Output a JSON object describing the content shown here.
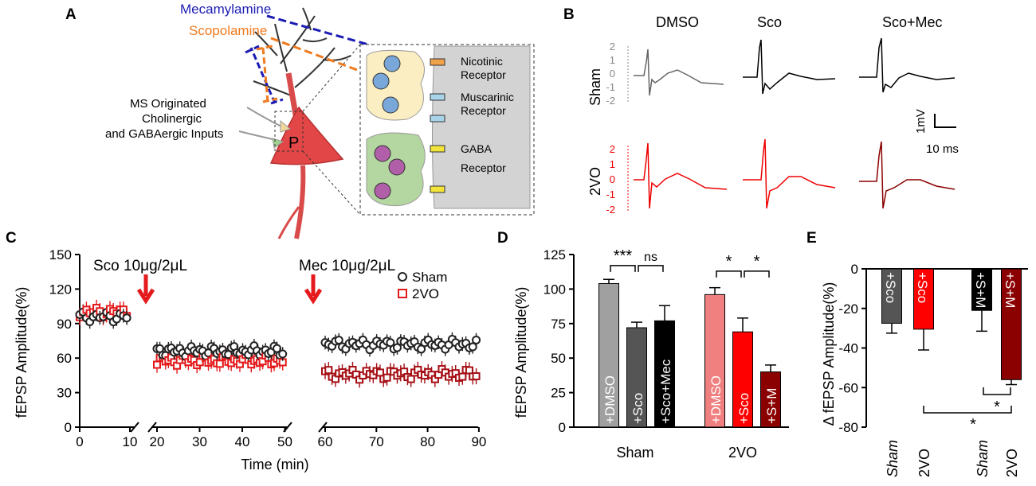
{
  "panels": {
    "a": "A",
    "b": "B",
    "c": "C",
    "d": "D",
    "e": "E"
  },
  "panel_a": {
    "mecamylamine": "Mecamylamine",
    "scopolamine": "Scopolamine",
    "inputs": [
      "MS Originated",
      "Cholinergic",
      "and GABAergic Inputs"
    ],
    "cell": "P",
    "nicotinic": [
      "Nicotinic",
      "Receptor"
    ],
    "muscarinic": [
      "Muscarinic",
      "Receptor"
    ],
    "gaba": [
      "GABA",
      "Receptor"
    ],
    "colors": {
      "mec": "#1c1cb4",
      "sco": "#f07a1e"
    }
  },
  "panel_b": {
    "conditions": [
      "DMSO",
      "Sco",
      "Sco+Mec"
    ],
    "groups": [
      "Sham",
      "2VO"
    ],
    "ticks": [
      "2",
      "1",
      "0",
      "-1",
      "-2"
    ],
    "scale_v": "1mV",
    "scale_t": "10 ms"
  },
  "chart_data": [
    {
      "type": "scatter",
      "title": "",
      "annotations": [
        "Sco 10μg/2μL",
        "Mec 10μg/2μL"
      ],
      "xlabel": "Time (min)",
      "ylabel": "fEPSP Amplitude(%)",
      "ylim": [
        0,
        150
      ],
      "yticks": [
        "0",
        "30",
        "60",
        "90",
        "120",
        "150"
      ],
      "xticks": [
        "0",
        "10",
        "20",
        "30",
        "40",
        "50",
        "60",
        "70",
        "80",
        "90"
      ],
      "series": [
        {
          "name": "Sham",
          "color": "#222222",
          "baseline": 100,
          "mid": 66,
          "late": 72
        },
        {
          "name": "2VO",
          "color": "#e41a1c",
          "late_color": "#a50f15",
          "baseline": 100,
          "mid": 58,
          "late": 46
        }
      ]
    },
    {
      "type": "bar",
      "ylabel": "fEPSP Amplitude(%)",
      "ylim": [
        0,
        125
      ],
      "yticks": [
        "0",
        "25",
        "50",
        "75",
        "100",
        "125"
      ],
      "groups": [
        "Sham",
        "2VO"
      ],
      "bars": [
        {
          "label": "+DMSO",
          "value": 104,
          "err": 3,
          "color": "#a0a0a0"
        },
        {
          "label": "+Sco",
          "value": 72,
          "err": 4,
          "color": "#555555"
        },
        {
          "label": "+Sco+Mec",
          "value": 77,
          "err": 11,
          "color": "#000000"
        },
        {
          "label": "+DMSO",
          "value": 96,
          "err": 5,
          "color": "#f08080"
        },
        {
          "label": "+Sco",
          "value": 69,
          "err": 10,
          "color": "#ff0000"
        },
        {
          "label": "+S+M",
          "value": 40,
          "err": 5,
          "color": "#8b0000"
        }
      ],
      "significance": [
        "***",
        "ns",
        "*",
        "*"
      ]
    },
    {
      "type": "bar",
      "ylabel": "Δ fEPSP Amplitude(%)",
      "ylim": [
        -80,
        0
      ],
      "yticks": [
        "0",
        "-20",
        "-40",
        "-60",
        "-80"
      ],
      "categories": [
        "Sham",
        "2VO",
        "Sham",
        "2VO"
      ],
      "bars": [
        {
          "label": "+Sco",
          "value": -27.5,
          "err": 5,
          "color": "#555555"
        },
        {
          "label": "+Sco",
          "value": -30.5,
          "err": 10.5,
          "color": "#ff0000"
        },
        {
          "label": "+S+M",
          "value": -21,
          "err": 10.5,
          "color": "#000000"
        },
        {
          "label": "+S+M",
          "value": -56,
          "err": 2.5,
          "color": "#8b0000"
        }
      ],
      "significance": [
        "*",
        "*"
      ]
    }
  ]
}
